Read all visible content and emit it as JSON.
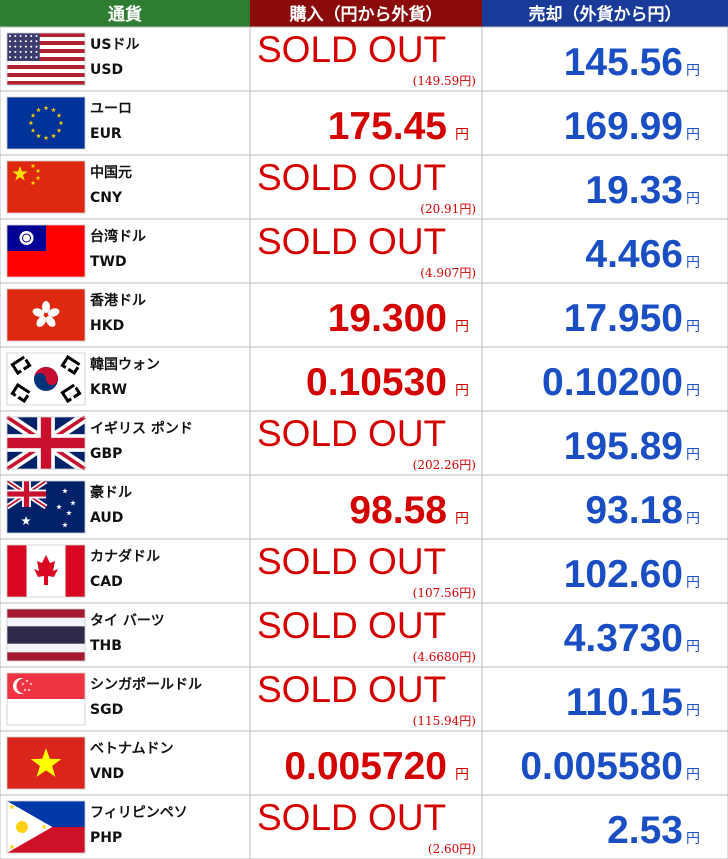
{
  "header": {
    "currency": "通貨",
    "buy": "購入（円から外貨）",
    "sell": "売却（外貨から円）"
  },
  "unit": "円",
  "rows": [
    {
      "name": "USドル",
      "code": "USD",
      "buy": "SOLD OUT",
      "buy_note": "(149.59円)",
      "sell": "145.56"
    },
    {
      "name": "ユーロ",
      "code": "EUR",
      "buy": "175.45",
      "sell": "169.99"
    },
    {
      "name": "中国元",
      "code": "CNY",
      "buy": "SOLD OUT",
      "buy_note": "(20.91円)",
      "sell": "19.33"
    },
    {
      "name": "台湾ドル",
      "code": "TWD",
      "buy": "SOLD OUT",
      "buy_note": "(4.907円)",
      "sell": "4.466"
    },
    {
      "name": "香港ドル",
      "code": "HKD",
      "buy": "19.300",
      "sell": "17.950"
    },
    {
      "name": "韓国ウォン",
      "code": "KRW",
      "buy": "0.10530",
      "sell": "0.10200"
    },
    {
      "name": "イギリス ポンド",
      "code": "GBP",
      "buy": "SOLD OUT",
      "buy_note": "(202.26円)",
      "sell": "195.89"
    },
    {
      "name": "豪ドル",
      "code": "AUD",
      "buy": "98.58",
      "sell": "93.18"
    },
    {
      "name": "カナダドル",
      "code": "CAD",
      "buy": "SOLD OUT",
      "buy_note": "(107.56円)",
      "sell": "102.60"
    },
    {
      "name": "タイ バーツ",
      "code": "THB",
      "buy": "SOLD OUT",
      "buy_note": "(4.6680円)",
      "sell": "4.3730"
    },
    {
      "name": "シンガポールドル",
      "code": "SGD",
      "buy": "SOLD OUT",
      "buy_note": "(115.94円)",
      "sell": "110.15"
    },
    {
      "name": "ベトナムドン",
      "code": "VND",
      "buy": "0.005720",
      "sell": "0.005580"
    },
    {
      "name": "フィリピンペソ",
      "code": "PHP",
      "buy": "SOLD OUT",
      "buy_note": "(2.60円)",
      "sell": "2.53"
    }
  ]
}
